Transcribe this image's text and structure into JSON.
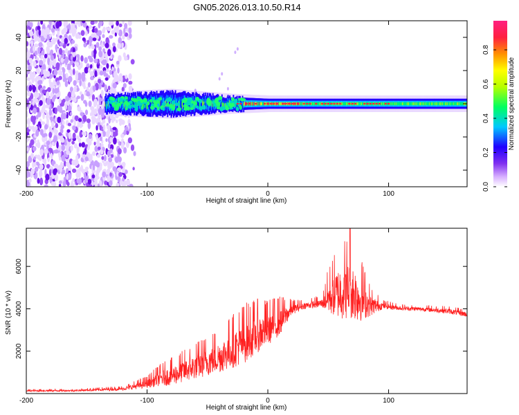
{
  "figure_title": "GN05.2026.013.10.50.R14",
  "chart_data": [
    {
      "type": "heatmap",
      "name": "spectrogram",
      "title": "GN05.2026.013.10.50.R14",
      "xlabel": "Height of straight line (km)",
      "ylabel": "Frequency (Hz)",
      "xlim": [
        -200,
        165
      ],
      "ylim": [
        -50,
        50
      ],
      "xticks": [
        -200,
        -100,
        0,
        100
      ],
      "yticks": [
        40,
        20,
        0,
        -20,
        -40
      ],
      "xtick_labels": [
        "-200",
        "-100",
        "0",
        "100"
      ],
      "ytick_labels": [
        "40",
        "20",
        "0",
        "-20",
        "-40"
      ],
      "colorbar": {
        "label": "Normalized spectral amplitude",
        "range": [
          0,
          0.97
        ],
        "ticks": [
          0.0,
          0.2,
          0.4,
          0.6,
          0.8
        ],
        "tick_labels": [
          "0.0",
          "0.2",
          "0.4",
          "0.6",
          "0.8"
        ],
        "colors": [
          "#ffffff",
          "#c080ff",
          "#6a00e0",
          "#0000ff",
          "#00c8ff",
          "#00ff60",
          "#b4ff00",
          "#ffff00",
          "#ff8000",
          "#ff2040",
          "#ff2080"
        ]
      },
      "description_series": {
        "band_center_hz": 0,
        "noise_region_km": [
          -200,
          -110
        ],
        "band_halfwidth_hz": [
          {
            "x": -135,
            "halfwidth": 5
          },
          {
            "x": -80,
            "halfwidth": 7
          },
          {
            "x": -30,
            "halfwidth": 4
          },
          {
            "x": 0,
            "halfwidth": 3
          },
          {
            "x": 60,
            "halfwidth": 3
          },
          {
            "x": 165,
            "halfwidth": 3
          }
        ]
      }
    },
    {
      "type": "line",
      "name": "snr",
      "xlabel": "Height of straight line (km)",
      "ylabel": "SNR (10 * v/v)",
      "xlim": [
        -200,
        165
      ],
      "ylim": [
        0,
        7800
      ],
      "xticks": [
        -200,
        -100,
        0,
        100
      ],
      "yticks": [
        2000,
        4000,
        6000
      ],
      "xtick_labels": [
        "-200",
        "-100",
        "0",
        "100"
      ],
      "ytick_labels": [
        "2000",
        "4000",
        "6000"
      ],
      "color": "#ff2020",
      "envelope": {
        "x": [
          -200,
          -160,
          -120,
          -100,
          -90,
          -80,
          -60,
          -40,
          -20,
          -10,
          0,
          10,
          20,
          30,
          45,
          50,
          60,
          68,
          75,
          85,
          95,
          110,
          130,
          150,
          165
        ],
        "base": [
          120,
          130,
          200,
          400,
          600,
          700,
          1100,
          1500,
          2100,
          2500,
          2800,
          3200,
          3900,
          4100,
          4200,
          4300,
          4400,
          4500,
          4200,
          4000,
          4100,
          4000,
          3950,
          3850,
          3700
        ],
        "amp": [
          80,
          80,
          150,
          400,
          700,
          900,
          1200,
          1500,
          2000,
          1800,
          1500,
          1300,
          500,
          300,
          400,
          1500,
          2600,
          2800,
          2400,
          1000,
          300,
          200,
          200,
          250,
          250
        ],
        "peak_value": 7800,
        "peak_x": 68
      }
    }
  ]
}
